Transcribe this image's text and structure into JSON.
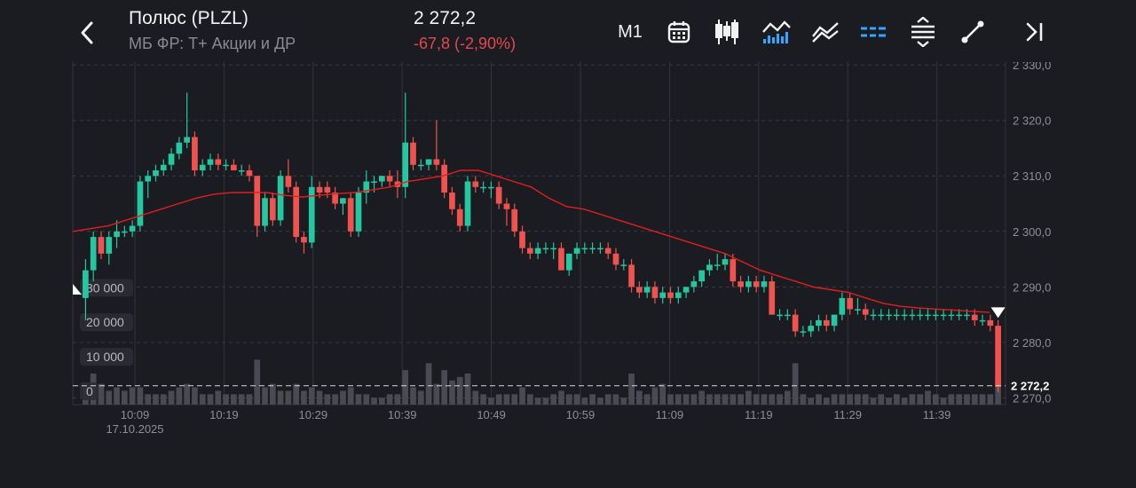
{
  "header": {
    "title": "Полюс (PLZL)",
    "subtitle": "МБ ФР: Т+ Акции и ДР",
    "price": "2 272,2",
    "change": "-67,8 (-2,90%)",
    "timeframe": "M1"
  },
  "toolbar": {
    "icons": [
      "back-icon",
      "calendar-icon",
      "candlestick-icon",
      "indicators-icon",
      "compare-icon",
      "horizontal-lines-icon",
      "scale-icon",
      "drawing-icon",
      "jump-to-end-icon"
    ]
  },
  "colors": {
    "up": "#26c6a0",
    "down": "#ef5350",
    "ma": "#e01f1f",
    "volume": "#4a4a54",
    "accent": "#2fa8ff",
    "negative": "#e5484d"
  },
  "chart_data": {
    "type": "candlestick",
    "date": "17.10.2025",
    "x_ticks": [
      "10:09",
      "10:19",
      "10:29",
      "10:39",
      "10:49",
      "10:59",
      "11:09",
      "11:19",
      "11:29",
      "11:39"
    ],
    "y_ticks": [
      "2 270,0",
      "2 280,0",
      "2 290,0",
      "2 300,0",
      "2 310,0",
      "2 320,0",
      "2 330,0"
    ],
    "ylim": [
      2268.8,
      2330.5
    ],
    "volume_ticks": [
      "0",
      "10 000",
      "20 000",
      "30 000"
    ],
    "volume_ylim": [
      0,
      36000
    ],
    "last_price_label": "2 272,2",
    "last_price": 2272.2,
    "candles": [
      [
        2288,
        2295,
        2284,
        2293,
        5000
      ],
      [
        2293,
        2300,
        2291,
        2299,
        9000
      ],
      [
        2299,
        2300,
        2295,
        2296,
        6000
      ],
      [
        2296,
        2300,
        2294,
        2299,
        4000
      ],
      [
        2299,
        2302,
        2297,
        2300,
        5000
      ],
      [
        2300,
        2301,
        2299,
        2300,
        4000
      ],
      [
        2300,
        2302,
        2299,
        2301,
        5000
      ],
      [
        2301,
        2310,
        2300,
        2309,
        5000
      ],
      [
        2309,
        2311,
        2306,
        2310,
        3000
      ],
      [
        2310,
        2312,
        2309,
        2311,
        3000
      ],
      [
        2311,
        2313,
        2310,
        2312,
        3000
      ],
      [
        2312,
        2315,
        2311,
        2314,
        4000
      ],
      [
        2314,
        2317,
        2313,
        2316,
        5000
      ],
      [
        2316,
        2325,
        2315,
        2317,
        6000
      ],
      [
        2317,
        2318,
        2310,
        2311,
        5000
      ],
      [
        2311,
        2313,
        2310,
        2312,
        3000
      ],
      [
        2312,
        2314,
        2311,
        2313,
        3000
      ],
      [
        2313,
        2314,
        2311,
        2312,
        4000
      ],
      [
        2312,
        2313,
        2311,
        2312,
        3000
      ],
      [
        2312,
        2313,
        2311,
        2311,
        3000
      ],
      [
        2311,
        2312,
        2310,
        2311,
        3000
      ],
      [
        2311,
        2312,
        2309,
        2310,
        3000
      ],
      [
        2310,
        2310,
        2299,
        2301,
        13000
      ],
      [
        2301,
        2307,
        2300,
        2306,
        5000
      ],
      [
        2306,
        2307,
        2301,
        2302,
        6000
      ],
      [
        2302,
        2311,
        2301,
        2310,
        4000
      ],
      [
        2310,
        2313,
        2307,
        2308,
        4000
      ],
      [
        2308,
        2309,
        2298,
        2299,
        6000
      ],
      [
        2299,
        2300,
        2296,
        2298,
        4000
      ],
      [
        2298,
        2310,
        2297,
        2308,
        5000
      ],
      [
        2308,
        2309,
        2306,
        2307,
        4000
      ],
      [
        2308,
        2309,
        2306,
        2307,
        3000
      ],
      [
        2307,
        2308,
        2304,
        2305,
        3000
      ],
      [
        2305,
        2306,
        2303,
        2306,
        4000
      ],
      [
        2306,
        2307,
        2299,
        2300,
        5000
      ],
      [
        2300,
        2308,
        2299,
        2307,
        3000
      ],
      [
        2307,
        2311,
        2305,
        2309,
        3000
      ],
      [
        2309,
        2310,
        2307,
        2309,
        2000
      ],
      [
        2309,
        2310,
        2308,
        2310,
        2000
      ],
      [
        2310,
        2311,
        2308,
        2309,
        3000
      ],
      [
        2309,
        2311,
        2306,
        2308,
        3000
      ],
      [
        2308,
        2325,
        2306,
        2316,
        10000
      ],
      [
        2316,
        2317,
        2311,
        2312,
        5000
      ],
      [
        2312,
        2313,
        2311,
        2312,
        4000
      ],
      [
        2312,
        2313,
        2311,
        2313,
        12000
      ],
      [
        2313,
        2320,
        2311,
        2312,
        6000
      ],
      [
        2312,
        2313,
        2306,
        2307,
        10000
      ],
      [
        2307,
        2308,
        2303,
        2304,
        7000
      ],
      [
        2304,
        2305,
        2300,
        2301,
        8000
      ],
      [
        2301,
        2310,
        2300,
        2309,
        9000
      ],
      [
        2309,
        2310,
        2307,
        2308,
        4000
      ],
      [
        2308,
        2309,
        2307,
        2308,
        3000
      ],
      [
        2308,
        2309,
        2306,
        2308,
        2000
      ],
      [
        2308,
        2309,
        2304,
        2305,
        3000
      ],
      [
        2305,
        2306,
        2301,
        2304,
        3000
      ],
      [
        2304,
        2305,
        2299,
        2300,
        3000
      ],
      [
        2300,
        2301,
        2296,
        2297,
        5000
      ],
      [
        2297,
        2298,
        2295,
        2296,
        3000
      ],
      [
        2296,
        2298,
        2295,
        2297,
        2000
      ],
      [
        2297,
        2298,
        2296,
        2297,
        2000
      ],
      [
        2297,
        2298,
        2295,
        2297,
        3000
      ],
      [
        2297,
        2298,
        2293,
        2293,
        4000
      ],
      [
        2293,
        2296,
        2292,
        2296,
        3000
      ],
      [
        2296,
        2298,
        2295,
        2297,
        3000
      ],
      [
        2297,
        2298,
        2296,
        2297,
        2000
      ],
      [
        2297,
        2298,
        2296,
        2297,
        3000
      ],
      [
        2297,
        2298,
        2296,
        2297,
        2000
      ],
      [
        2297,
        2298,
        2295,
        2296,
        3000
      ],
      [
        2296,
        2297,
        2293,
        2294,
        3000
      ],
      [
        2294,
        2295,
        2293,
        2294,
        2000
      ],
      [
        2294,
        2295,
        2289,
        2290,
        9000
      ],
      [
        2290,
        2291,
        2288,
        2289,
        4000
      ],
      [
        2289,
        2291,
        2288,
        2290,
        3000
      ],
      [
        2290,
        2291,
        2287,
        2288,
        5000
      ],
      [
        2288,
        2290,
        2287,
        2289,
        6000
      ],
      [
        2289,
        2290,
        2287,
        2288,
        3000
      ],
      [
        2288,
        2290,
        2287,
        2289,
        3000
      ],
      [
        2289,
        2290,
        2288,
        2290,
        3000
      ],
      [
        2290,
        2292,
        2289,
        2291,
        3000
      ],
      [
        2291,
        2293,
        2290,
        2293,
        4000
      ],
      [
        2293,
        2295,
        2292,
        2294,
        3000
      ],
      [
        2294,
        2296,
        2293,
        2294,
        3000
      ],
      [
        2294,
        2296,
        2293,
        2295,
        3000
      ],
      [
        2295,
        2296,
        2290,
        2291,
        3000
      ],
      [
        2291,
        2292,
        2289,
        2290,
        3000
      ],
      [
        2290,
        2292,
        2289,
        2291,
        4000
      ],
      [
        2291,
        2292,
        2289,
        2290,
        3000
      ],
      [
        2290,
        2292,
        2289,
        2291,
        3000
      ],
      [
        2291,
        2292,
        2285,
        2285,
        3000
      ],
      [
        2285,
        2286,
        2284,
        2285,
        3000
      ],
      [
        2285,
        2286,
        2284,
        2285,
        4000
      ],
      [
        2285,
        2286,
        2281,
        2282,
        12000
      ],
      [
        2282,
        2283,
        2281,
        2282,
        3000
      ],
      [
        2282,
        2284,
        2281,
        2283,
        2000
      ],
      [
        2283,
        2285,
        2282,
        2284,
        3000
      ],
      [
        2284,
        2285,
        2282,
        2283,
        2000
      ],
      [
        2283,
        2285,
        2282,
        2285,
        3000
      ],
      [
        2285,
        2289,
        2284,
        2288,
        3000
      ],
      [
        2288,
        2289,
        2285,
        2286,
        3000
      ],
      [
        2286,
        2288,
        2285,
        2286,
        3000
      ],
      [
        2286,
        2287,
        2284,
        2285,
        3000
      ],
      [
        2285,
        2286,
        2284,
        2285,
        2000
      ],
      [
        2285,
        2286,
        2284,
        2285,
        3000
      ],
      [
        2285,
        2286,
        2284,
        2285,
        2000
      ],
      [
        2285,
        2286,
        2284,
        2285,
        3000
      ],
      [
        2285,
        2286,
        2284,
        2285,
        2000
      ],
      [
        2285,
        2286,
        2284,
        2285,
        3000
      ],
      [
        2285,
        2286,
        2284,
        2285,
        3000
      ],
      [
        2285,
        2286,
        2284,
        2285,
        4000
      ],
      [
        2285,
        2286,
        2284,
        2285,
        3000
      ],
      [
        2285,
        2286,
        2284,
        2285,
        2000
      ],
      [
        2285,
        2286,
        2284,
        2285,
        3000
      ],
      [
        2285,
        2286,
        2284,
        2285,
        3000
      ],
      [
        2285,
        2286,
        2284,
        2285,
        3000
      ],
      [
        2285,
        2286,
        2283,
        2284,
        3000
      ],
      [
        2284,
        2285,
        2283,
        2284,
        3000
      ],
      [
        2284,
        2285,
        2282,
        2283,
        3000
      ],
      [
        2283,
        2284,
        2271,
        2272,
        8000
      ]
    ],
    "ma": [
      2300,
      2300.5,
      2301,
      2302,
      2303,
      2304,
      2305,
      2306,
      2306.7,
      2307,
      2307,
      2307,
      2306.5,
      2306.2,
      2306.5,
      2306.8,
      2307,
      2307.5,
      2308,
      2309,
      2309.5,
      2310,
      2311,
      2311,
      2310,
      2309,
      2308,
      2306,
      2304.5,
      2304,
      2303,
      2302,
      2301,
      2300,
      2299,
      2298,
      2297,
      2296,
      2294.5,
      2293,
      2292,
      2291,
      2290,
      2289.5,
      2289,
      2288,
      2287,
      2286.5,
      2286.2,
      2286,
      2285.8,
      2285.6,
      2285.4
    ]
  }
}
